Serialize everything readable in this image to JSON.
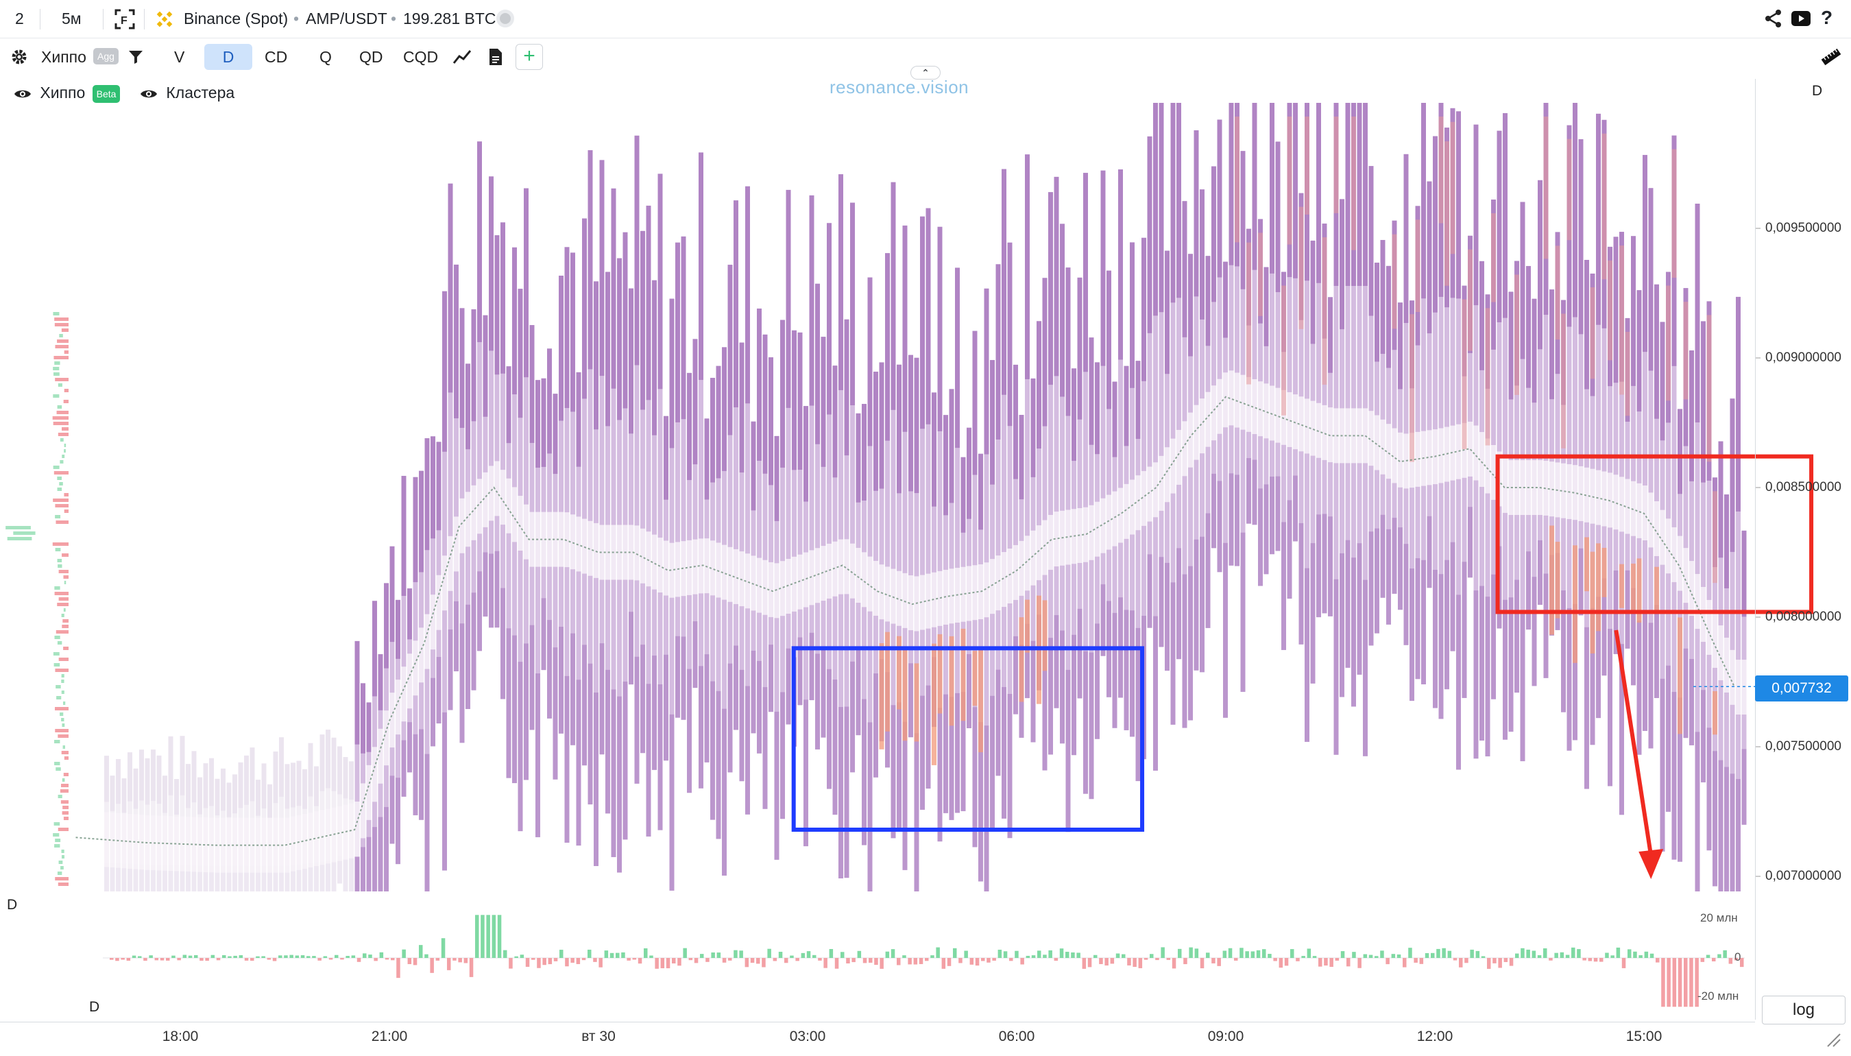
{
  "topbar": {
    "layout_num": "2",
    "timeframe": "5м",
    "exchange": "Binance (Spot)",
    "pair": "AMP/USDT",
    "volume": "199.281 BTC"
  },
  "toolbar": {
    "indicator_name": "Хиппо",
    "agg_badge": "Agg",
    "v_label": "V",
    "d_label": "D",
    "cd_label": "CD",
    "q_label": "Q",
    "qd_label": "QD",
    "cqd_label": "CQD"
  },
  "legend": {
    "item1": "Хиппо",
    "beta_badge": "Beta",
    "item2": "Кластера"
  },
  "watermark": "resonance.vision",
  "chart_data": {
    "type": "heatmap",
    "title": "",
    "pair": "AMP/USDT",
    "timeframe": "5м",
    "x_ticks": [
      "18:00",
      "21:00",
      "вт 30",
      "03:00",
      "06:00",
      "09:00",
      "12:00",
      "15:00"
    ],
    "y_ticks": [
      "0,009500000",
      "0,009000000",
      "0,008500000",
      "0,008000000",
      "0,007500000",
      "0,007000000"
    ],
    "y_tick_values": [
      0.0095,
      0.009,
      0.0085,
      0.008,
      0.0075,
      0.007
    ],
    "ylim": [
      0.0068,
      0.00995
    ],
    "current_price": "0,007732",
    "price_path": [
      [
        16.5,
        0.00715
      ],
      [
        17.5,
        0.00713
      ],
      [
        18.5,
        0.00712
      ],
      [
        19.5,
        0.00712
      ],
      [
        20.5,
        0.00718
      ],
      [
        21.0,
        0.0076
      ],
      [
        21.5,
        0.0079
      ],
      [
        22.0,
        0.00835
      ],
      [
        22.5,
        0.0085
      ],
      [
        23.0,
        0.0083
      ],
      [
        23.5,
        0.0083
      ],
      [
        24.0,
        0.00825
      ],
      [
        24.5,
        0.00825
      ],
      [
        25.0,
        0.00818
      ],
      [
        25.5,
        0.0082
      ],
      [
        26.0,
        0.00815
      ],
      [
        26.5,
        0.0081
      ],
      [
        27.0,
        0.00815
      ],
      [
        27.5,
        0.0082
      ],
      [
        28.0,
        0.0081
      ],
      [
        28.5,
        0.00805
      ],
      [
        29.0,
        0.00808
      ],
      [
        29.5,
        0.0081
      ],
      [
        30.0,
        0.00818
      ],
      [
        30.5,
        0.0083
      ],
      [
        31.0,
        0.00832
      ],
      [
        31.5,
        0.0084
      ],
      [
        32.0,
        0.0085
      ],
      [
        32.5,
        0.0087
      ],
      [
        33.0,
        0.00885
      ],
      [
        33.5,
        0.0088
      ],
      [
        34.0,
        0.00875
      ],
      [
        34.5,
        0.0087
      ],
      [
        35.0,
        0.0087
      ],
      [
        35.5,
        0.0086
      ],
      [
        36.0,
        0.00862
      ],
      [
        36.5,
        0.00865
      ],
      [
        37.0,
        0.0085
      ],
      [
        37.5,
        0.0085
      ],
      [
        38.0,
        0.00848
      ],
      [
        38.5,
        0.00845
      ],
      [
        39.0,
        0.0084
      ],
      [
        39.5,
        0.0082
      ],
      [
        40.0,
        0.0079
      ],
      [
        40.3,
        0.00773
      ]
    ],
    "delta_panel": {
      "label": "D",
      "y_ticks": [
        "20 млн",
        "0",
        "-20 млн"
      ],
      "y_tick_values": [
        20000000,
        0,
        -20000000
      ],
      "ylim": [
        -28000000,
        30000000
      ]
    },
    "annotations": [
      {
        "shape": "rectangle",
        "color": "#1e3cff",
        "t_range": [
          26.8,
          31.8
        ],
        "price_range": [
          0.00718,
          0.00788
        ]
      },
      {
        "shape": "rectangle",
        "color": "#f02a20",
        "t_range": [
          36.9,
          41.4
        ],
        "price_range": [
          0.00802,
          0.00862
        ]
      },
      {
        "shape": "arrow",
        "color": "#f02a20",
        "from": [
          38.6,
          0.00795
        ],
        "to": [
          39.1,
          0.007
        ]
      }
    ]
  },
  "right_labels": {
    "top_d": "D",
    "log_button": "log"
  },
  "colors": {
    "accent_blue": "#1e88e5",
    "profile_purple": "#b98ac9",
    "hot_orange": "#f39a7a",
    "buy_green": "#7fd9a3",
    "sell_red": "#f3a0a5"
  }
}
